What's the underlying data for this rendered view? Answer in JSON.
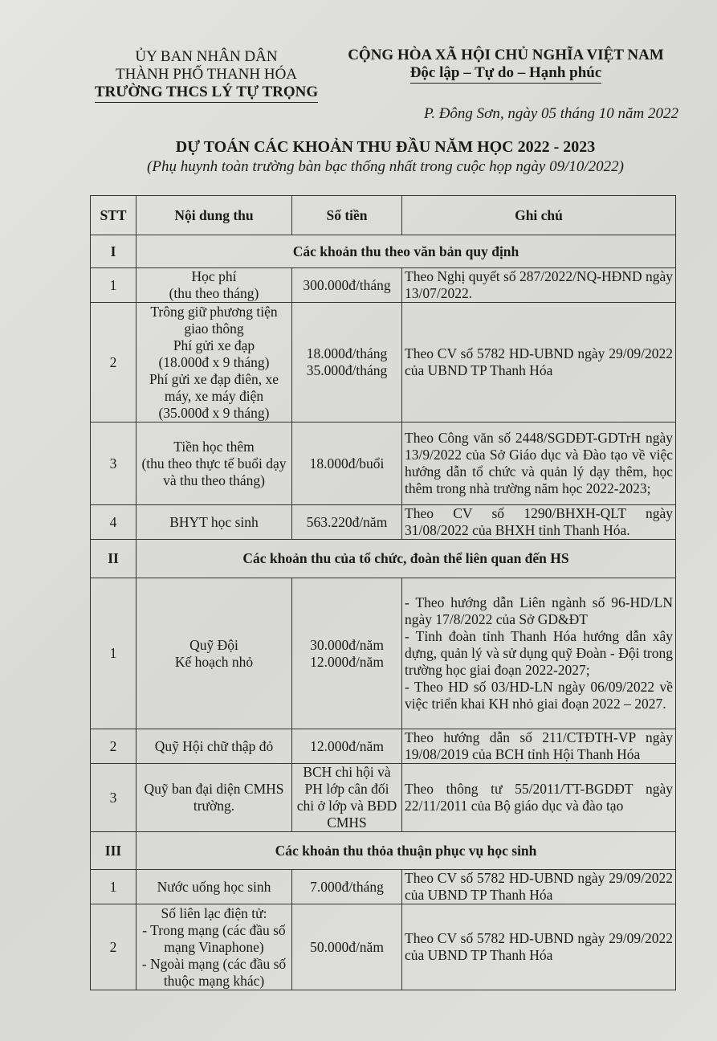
{
  "header_left": {
    "line1": "ỦY BAN NHÂN DÂN",
    "line2": "THÀNH PHỐ THANH HÓA",
    "line3": "TRƯỜNG THCS LÝ TỰ TRỌNG"
  },
  "header_right": {
    "line1": "CỘNG HÒA XÃ HỘI CHỦ NGHĨA VIỆT NAM",
    "line2": "Độc lập – Tự do – Hạnh phúc"
  },
  "date_line": "P. Đông Sơn, ngày 05 tháng 10 năm 2022",
  "title": "DỰ TOÁN CÁC KHOẢN THU ĐẦU NĂM HỌC 2022 - 2023",
  "subtitle": "(Phụ huynh toàn trường bàn bạc thống nhất trong cuộc họp ngày 09/10/2022)",
  "table": {
    "headers": [
      "STT",
      "Nội dung thu",
      "Số tiền",
      "Ghi chú"
    ],
    "sections": [
      {
        "num": "I",
        "title": "Các khoản thu theo văn bản quy định",
        "rows": [
          {
            "stt": "1",
            "content": "Học phí\n(thu theo tháng)",
            "amount": "300.000đ/tháng",
            "note": "Theo Nghị quyết số 287/2022/NQ-HĐND ngày 13/07/2022."
          },
          {
            "stt": "2",
            "content": "Trông giữ phương tiện giao thông\nPhí gửi xe đạp\n(18.000đ x 9 tháng)\nPhí gửi xe đạp điên, xe máy, xe máy điện\n(35.000đ x 9 tháng)",
            "amount": "18.000đ/tháng\n35.000đ/tháng",
            "note": "Theo CV số 5782 HD-UBND ngày 29/09/2022 của UBND TP Thanh Hóa"
          },
          {
            "stt": "3",
            "content": "Tiền học thêm\n(thu theo thực tế buổi dạy và thu theo tháng)",
            "amount": "18.000đ/buổi",
            "note": "Theo Công văn số 2448/SGDĐT-GDTrH ngày 13/9/2022 của Sở Giáo dục và Đào tạo về việc hướng dẫn tổ chức và quản lý dạy thêm, học thêm trong nhà trường năm học 2022-2023;"
          },
          {
            "stt": "4",
            "content": "BHYT học sinh",
            "amount": "563.220đ/năm",
            "note": "Theo CV số 1290/BHXH-QLT ngày 31/08/2022 của BHXH tỉnh  Thanh Hóa."
          }
        ]
      },
      {
        "num": "II",
        "title": "Các khoản thu của tổ chức, đoàn thể liên quan đến HS",
        "rows": [
          {
            "stt": "1",
            "content": "Quỹ Đội\nKế hoạch nhỏ",
            "amount": "30.000đ/năm\n12.000đ/năm",
            "note": "- Theo hướng dẫn Liên ngành số 96-HD/LN ngày 17/8/2022 của Sở  GD&ĐT\n- Tỉnh đoàn tỉnh Thanh Hóa hướng dẫn xây dựng, quản lý và sử dụng quỹ Đoàn - Đội trong trường học giai đoạn 2022-2027;\n-  Theo HD số 03/HD-LN ngày 06/09/2022 về việc triển khai KH nhỏ giai đoạn 2022 – 2027."
          },
          {
            "stt": "2",
            "content": "Quỹ Hội chữ thập đỏ",
            "amount": "12.000đ/năm",
            "note": "Theo hướng dẫn số 211/CTĐTH-VP ngày 19/08/2019 của BCH tỉnh Hội Thanh Hóa"
          },
          {
            "stt": "3",
            "content": "Quỹ ban đại diện CMHS trường.",
            "amount": "BCH chi hội và PH lớp cân đối chi ở lớp và BĐD CMHS",
            "note": "Theo thông tư 55/2011/TT-BGDĐT ngày 22/11/2011 của Bộ giáo dục và đào tạo"
          }
        ]
      },
      {
        "num": "III",
        "title": "Các khoản thu thỏa thuận phục vụ học sinh",
        "rows": [
          {
            "stt": "1",
            "content": "Nước uống học sinh",
            "amount": "7.000đ/tháng",
            "note": "Theo CV số 5782 HD-UBND ngày 29/09/2022 của UBND TP Thanh Hóa"
          },
          {
            "stt": "2",
            "content": "Số liên lạc điện tử:\n- Trong mạng (các đầu số mạng Vinaphone)\n- Ngoài mạng (các đầu số thuộc mạng khác)",
            "amount": "50.000đ/năm",
            "note": "Theo CV số 5782 HD-UBND ngày 29/09/2022 của UBND TP Thanh Hóa"
          }
        ]
      }
    ]
  }
}
